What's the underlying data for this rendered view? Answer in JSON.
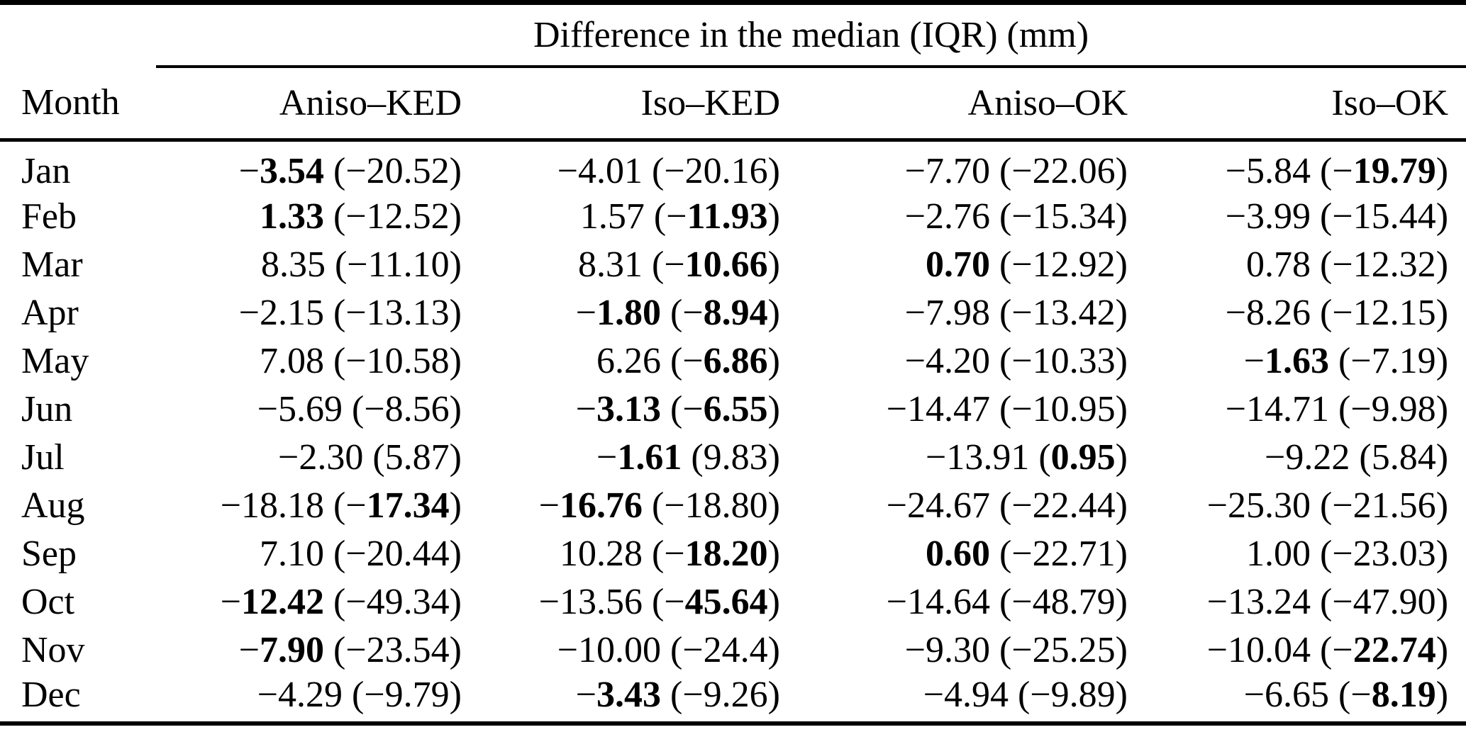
{
  "table": {
    "span_header": "Difference in the median (IQR) (mm)",
    "columns": [
      "Month",
      "Aniso–KED",
      "Iso–KED",
      "Aniso–OK",
      "Iso–OK"
    ],
    "value_format": "median (iqr)",
    "rows": [
      {
        "month": "Jan",
        "cells": [
          {
            "median": "−3.54",
            "bold_median": true,
            "iqr": "−20.52",
            "bold_iqr": false
          },
          {
            "median": "−4.01",
            "bold_median": false,
            "iqr": "−20.16",
            "bold_iqr": false
          },
          {
            "median": "−7.70",
            "bold_median": false,
            "iqr": "−22.06",
            "bold_iqr": false
          },
          {
            "median": "−5.84",
            "bold_median": false,
            "iqr": "−19.79",
            "bold_iqr": true
          }
        ]
      },
      {
        "month": "Feb",
        "cells": [
          {
            "median": "1.33",
            "bold_median": true,
            "iqr": "−12.52",
            "bold_iqr": false
          },
          {
            "median": "1.57",
            "bold_median": false,
            "iqr": "−11.93",
            "bold_iqr": true
          },
          {
            "median": "−2.76",
            "bold_median": false,
            "iqr": "−15.34",
            "bold_iqr": false
          },
          {
            "median": "−3.99",
            "bold_median": false,
            "iqr": "−15.44",
            "bold_iqr": false
          }
        ]
      },
      {
        "month": "Mar",
        "cells": [
          {
            "median": "8.35",
            "bold_median": false,
            "iqr": "−11.10",
            "bold_iqr": false
          },
          {
            "median": "8.31",
            "bold_median": false,
            "iqr": "−10.66",
            "bold_iqr": true
          },
          {
            "median": "0.70",
            "bold_median": true,
            "iqr": "−12.92",
            "bold_iqr": false
          },
          {
            "median": "0.78",
            "bold_median": false,
            "iqr": "−12.32",
            "bold_iqr": false
          }
        ]
      },
      {
        "month": "Apr",
        "cells": [
          {
            "median": "−2.15",
            "bold_median": false,
            "iqr": "−13.13",
            "bold_iqr": false
          },
          {
            "median": "−1.80",
            "bold_median": true,
            "iqr": "−8.94",
            "bold_iqr": true
          },
          {
            "median": "−7.98",
            "bold_median": false,
            "iqr": "−13.42",
            "bold_iqr": false
          },
          {
            "median": "−8.26",
            "bold_median": false,
            "iqr": "−12.15",
            "bold_iqr": false
          }
        ]
      },
      {
        "month": "May",
        "cells": [
          {
            "median": "7.08",
            "bold_median": false,
            "iqr": "−10.58",
            "bold_iqr": false
          },
          {
            "median": "6.26",
            "bold_median": false,
            "iqr": "−6.86",
            "bold_iqr": true
          },
          {
            "median": "−4.20",
            "bold_median": false,
            "iqr": "−10.33",
            "bold_iqr": false
          },
          {
            "median": "−1.63",
            "bold_median": true,
            "iqr": "−7.19",
            "bold_iqr": false
          }
        ]
      },
      {
        "month": "Jun",
        "cells": [
          {
            "median": "−5.69",
            "bold_median": false,
            "iqr": "−8.56",
            "bold_iqr": false
          },
          {
            "median": "−3.13",
            "bold_median": true,
            "iqr": "−6.55",
            "bold_iqr": true
          },
          {
            "median": "−14.47",
            "bold_median": false,
            "iqr": "−10.95",
            "bold_iqr": false
          },
          {
            "median": "−14.71",
            "bold_median": false,
            "iqr": "−9.98",
            "bold_iqr": false
          }
        ]
      },
      {
        "month": "Jul",
        "cells": [
          {
            "median": "−2.30",
            "bold_median": false,
            "iqr": "5.87",
            "bold_iqr": false
          },
          {
            "median": "−1.61",
            "bold_median": true,
            "iqr": "9.83",
            "bold_iqr": false
          },
          {
            "median": "−13.91",
            "bold_median": false,
            "iqr": "0.95",
            "bold_iqr": true
          },
          {
            "median": "−9.22",
            "bold_median": false,
            "iqr": "5.84",
            "bold_iqr": false
          }
        ]
      },
      {
        "month": "Aug",
        "cells": [
          {
            "median": "−18.18",
            "bold_median": false,
            "iqr": "−17.34",
            "bold_iqr": true
          },
          {
            "median": "−16.76",
            "bold_median": true,
            "iqr": "−18.80",
            "bold_iqr": false
          },
          {
            "median": "−24.67",
            "bold_median": false,
            "iqr": "−22.44",
            "bold_iqr": false
          },
          {
            "median": "−25.30",
            "bold_median": false,
            "iqr": "−21.56",
            "bold_iqr": false
          }
        ]
      },
      {
        "month": "Sep",
        "cells": [
          {
            "median": "7.10",
            "bold_median": false,
            "iqr": "−20.44",
            "bold_iqr": false
          },
          {
            "median": "10.28",
            "bold_median": false,
            "iqr": "−18.20",
            "bold_iqr": true
          },
          {
            "median": "0.60",
            "bold_median": true,
            "iqr": "−22.71",
            "bold_iqr": false
          },
          {
            "median": "1.00",
            "bold_median": false,
            "iqr": "−23.03",
            "bold_iqr": false
          }
        ]
      },
      {
        "month": "Oct",
        "cells": [
          {
            "median": "−12.42",
            "bold_median": true,
            "iqr": "−49.34",
            "bold_iqr": false
          },
          {
            "median": "−13.56",
            "bold_median": false,
            "iqr": "−45.64",
            "bold_iqr": true
          },
          {
            "median": "−14.64",
            "bold_median": false,
            "iqr": "−48.79",
            "bold_iqr": false
          },
          {
            "median": "−13.24",
            "bold_median": false,
            "iqr": "−47.90",
            "bold_iqr": false
          }
        ]
      },
      {
        "month": "Nov",
        "cells": [
          {
            "median": "−7.90",
            "bold_median": true,
            "iqr": "−23.54",
            "bold_iqr": false
          },
          {
            "median": "−10.00",
            "bold_median": false,
            "iqr": "−24.4",
            "bold_iqr": false
          },
          {
            "median": "−9.30",
            "bold_median": false,
            "iqr": "−25.25",
            "bold_iqr": false
          },
          {
            "median": "−10.04",
            "bold_median": false,
            "iqr": "−22.74",
            "bold_iqr": true
          }
        ]
      },
      {
        "month": "Dec",
        "cells": [
          {
            "median": "−4.29",
            "bold_median": false,
            "iqr": "−9.79",
            "bold_iqr": false
          },
          {
            "median": "−3.43",
            "bold_median": true,
            "iqr": "−9.26",
            "bold_iqr": false
          },
          {
            "median": "−4.94",
            "bold_median": false,
            "iqr": "−9.89",
            "bold_iqr": false
          },
          {
            "median": "−6.65",
            "bold_median": false,
            "iqr": "−8.19",
            "bold_iqr": true
          }
        ]
      }
    ]
  }
}
